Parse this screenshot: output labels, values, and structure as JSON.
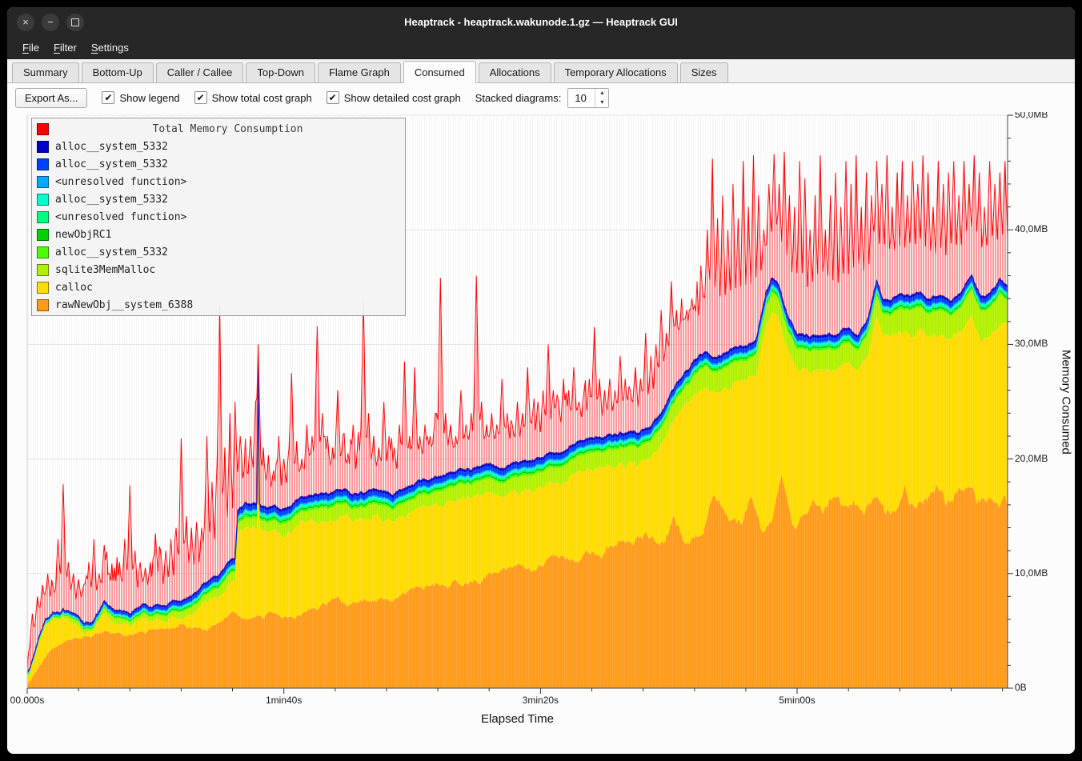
{
  "window": {
    "title": "Heaptrack - heaptrack.wakunode.1.gz — Heaptrack GUI"
  },
  "icons": {
    "close": "×",
    "minimize": "−",
    "check": "✔",
    "spin_up": "▴",
    "spin_down": "▾"
  },
  "menubar": {
    "items": [
      {
        "label": "File",
        "mnemonic": "F"
      },
      {
        "label": "Filter",
        "mnemonic": "F"
      },
      {
        "label": "Settings",
        "mnemonic": "S"
      }
    ]
  },
  "tabs": {
    "items": [
      "Summary",
      "Bottom-Up",
      "Caller / Callee",
      "Top-Down",
      "Flame Graph",
      "Consumed",
      "Allocations",
      "Temporary Allocations",
      "Sizes"
    ],
    "active": "Consumed"
  },
  "toolbar": {
    "export_button": "Export As...",
    "checkboxes": [
      {
        "label": "Show legend",
        "checked": true
      },
      {
        "label": "Show total cost graph",
        "checked": true
      },
      {
        "label": "Show detailed cost graph",
        "checked": true
      }
    ],
    "stacked_label": "Stacked diagrams:",
    "stacked_value": "10"
  },
  "chart_data": {
    "type": "area",
    "title": "Total Memory Consumption",
    "title_color": "#ff0000",
    "xlabel": "Elapsed Time",
    "ylabel": "Memory Consumed",
    "x_range": [
      0,
      382
    ],
    "y_range": [
      0,
      50
    ],
    "x_ticks": [
      {
        "label": "00.000s",
        "t": 0
      },
      {
        "label": "1min40s",
        "t": 100
      },
      {
        "label": "3min20s",
        "t": 200
      },
      {
        "label": "5min00s",
        "t": 300
      }
    ],
    "y_ticks": [
      {
        "label": "0B",
        "v": 0
      },
      {
        "label": "10,0MB",
        "v": 10
      },
      {
        "label": "20,0MB",
        "v": 20
      },
      {
        "label": "30,0MB",
        "v": 30
      },
      {
        "label": "40,0MB",
        "v": 40
      },
      {
        "label": "50,0MB",
        "v": 50
      }
    ],
    "legend": [
      {
        "name": "alloc__system_5332",
        "color": "#0000cd"
      },
      {
        "name": "alloc__system_5332",
        "color": "#0040ff"
      },
      {
        "name": "<unresolved function>",
        "color": "#00aaff"
      },
      {
        "name": "alloc__system_5332",
        "color": "#00ffcc"
      },
      {
        "name": "<unresolved function>",
        "color": "#00ff7f"
      },
      {
        "name": "newObjRC1",
        "color": "#00d400"
      },
      {
        "name": "alloc__system_5332",
        "color": "#4cff00"
      },
      {
        "name": "sqlite3MemMalloc",
        "color": "#b2f000"
      },
      {
        "name": "calloc",
        "color": "#ffdb00"
      },
      {
        "name": "rawNewObj__system_6388",
        "color": "#ff9a1a"
      }
    ],
    "envelopes": {
      "stack_top": {
        "t": [
          0,
          2,
          4,
          7,
          10,
          14,
          18,
          22,
          26,
          30,
          34,
          40,
          46,
          52,
          58,
          64,
          70,
          74,
          78,
          81,
          82,
          85,
          89.5,
          90,
          90.5,
          92,
          96,
          100,
          106,
          112,
          118,
          124,
          130,
          136,
          142,
          148,
          154,
          160,
          166,
          172,
          178,
          184,
          190,
          196,
          202,
          208,
          214,
          220,
          226,
          232,
          238,
          244,
          248,
          252,
          256,
          260,
          264,
          268,
          272,
          276,
          280,
          284,
          288,
          290,
          293,
          296,
          300,
          304,
          308,
          312,
          316,
          320,
          324,
          328,
          331,
          333,
          336,
          340,
          344,
          348,
          352,
          356,
          360,
          364,
          368,
          371,
          373,
          376,
          379,
          382
        ],
        "v": [
          1.5,
          2.5,
          4.0,
          6.0,
          6.8,
          7.0,
          6.2,
          5.6,
          6.1,
          7.3,
          6.5,
          6.6,
          7.2,
          7.0,
          7.6,
          8.1,
          9.3,
          9.6,
          10.6,
          10.9,
          15.3,
          16.0,
          16.1,
          28.8,
          16.2,
          16.0,
          15.6,
          15.5,
          16.5,
          16.8,
          16.6,
          17.0,
          17.1,
          17.4,
          17.2,
          17.6,
          18.0,
          18.5,
          18.9,
          19.2,
          19.5,
          19.2,
          19.7,
          20.0,
          20.3,
          21.0,
          21.6,
          22.0,
          22.2,
          22.4,
          22.3,
          23.2,
          24.6,
          26.2,
          27.6,
          28.6,
          29.3,
          28.9,
          29.3,
          29.7,
          29.6,
          30.1,
          34.6,
          35.8,
          35.2,
          32.6,
          30.8,
          31.0,
          30.7,
          31.2,
          30.9,
          31.4,
          31.0,
          32.6,
          35.6,
          34.2,
          34.0,
          34.5,
          34.0,
          34.4,
          33.9,
          34.5,
          34.0,
          34.6,
          36.2,
          34.6,
          34.2,
          35.0,
          35.8,
          35.2
        ]
      },
      "orange_top": {
        "t": [
          0,
          5,
          10,
          20,
          30,
          40,
          50,
          60,
          70,
          80,
          90,
          100,
          110,
          120,
          130,
          140,
          150,
          160,
          170,
          180,
          190,
          200,
          210,
          220,
          230,
          240,
          248,
          252,
          256,
          262,
          268,
          274,
          278,
          282,
          286,
          290,
          294,
          298,
          302,
          306,
          310,
          314,
          318,
          322,
          326,
          330,
          334,
          338,
          342,
          346,
          350,
          354,
          358,
          362,
          366,
          370,
          374,
          378,
          382
        ],
        "v": [
          0.3,
          2.0,
          3.5,
          4.5,
          5.0,
          4.6,
          5.0,
          5.5,
          5.2,
          6.0,
          6.2,
          6.5,
          7.0,
          7.4,
          7.5,
          8.0,
          8.5,
          9.0,
          9.5,
          10.0,
          10.4,
          11.0,
          11.2,
          12.0,
          12.5,
          13.2,
          12.8,
          15.5,
          13.2,
          13.8,
          16.8,
          13.8,
          14.2,
          17.0,
          14.2,
          14.6,
          19.5,
          14.8,
          15.2,
          16.8,
          15.0,
          16.5,
          15.2,
          16.8,
          15.4,
          17.5,
          15.6,
          16.0,
          17.8,
          15.8,
          16.2,
          17.2,
          15.6,
          16.4,
          17.6,
          15.8,
          16.6,
          17.2,
          16.0
        ]
      },
      "yellowgreen": {
        "base": 0.3,
        "grow": 1.6
      },
      "upper_bands": [
        {
          "name": "alloc__system_5332",
          "mb": 0.18
        },
        {
          "name": "newObjRC1",
          "mb": 0.15
        },
        {
          "name": "<unresolved function>",
          "mb": 0.15
        },
        {
          "name": "alloc__system_5332",
          "mb": 0.15
        },
        {
          "name": "<unresolved function>",
          "mb": 0.12
        },
        {
          "name": "alloc__system_5332",
          "mb": 0.35
        },
        {
          "name": "alloc__system_5332",
          "mb": 0.2
        }
      ],
      "red_boost": {
        "t": [
          0,
          244,
          250,
          263,
          268,
          382
        ],
        "v": [
          0,
          0.3,
          2.6,
          2.6,
          0.9,
          1.0
        ]
      }
    },
    "spikes": [
      [
        2,
        6.5
      ],
      [
        4,
        8
      ],
      [
        6,
        9
      ],
      [
        8,
        10
      ],
      [
        10,
        9
      ],
      [
        12,
        13
      ],
      [
        14,
        17.8
      ],
      [
        16,
        11
      ],
      [
        18,
        10
      ],
      [
        20,
        9.5
      ],
      [
        22,
        9
      ],
      [
        24,
        11
      ],
      [
        26,
        13
      ],
      [
        28,
        10
      ],
      [
        30,
        12.5
      ],
      [
        32,
        10
      ],
      [
        34,
        10.5
      ],
      [
        36,
        11
      ],
      [
        38,
        13
      ],
      [
        40,
        17.7
      ],
      [
        42,
        12
      ],
      [
        44,
        11
      ],
      [
        46,
        10.5
      ],
      [
        48,
        11
      ],
      [
        50,
        13.5
      ],
      [
        52,
        12
      ],
      [
        54,
        12
      ],
      [
        56,
        13
      ],
      [
        58,
        14
      ],
      [
        60,
        21.8
      ],
      [
        62,
        15
      ],
      [
        64,
        14
      ],
      [
        66,
        14.5
      ],
      [
        68,
        14
      ],
      [
        70,
        22
      ],
      [
        72,
        18
      ],
      [
        74,
        20
      ],
      [
        75,
        33.4
      ],
      [
        77,
        21
      ],
      [
        79,
        24
      ],
      [
        81,
        25
      ],
      [
        83,
        22
      ],
      [
        85,
        20
      ],
      [
        87,
        22
      ],
      [
        89,
        25
      ],
      [
        90,
        30
      ],
      [
        92,
        21
      ],
      [
        94,
        20
      ],
      [
        96,
        19
      ],
      [
        98,
        22
      ],
      [
        100,
        20
      ],
      [
        102,
        21
      ],
      [
        103,
        27.5
      ],
      [
        105,
        21
      ],
      [
        107,
        20
      ],
      [
        109,
        23
      ],
      [
        111,
        22
      ],
      [
        113,
        31.6
      ],
      [
        115,
        24
      ],
      [
        117,
        22
      ],
      [
        119,
        21
      ],
      [
        121,
        26
      ],
      [
        123,
        22
      ],
      [
        125,
        20.5
      ],
      [
        127,
        23
      ],
      [
        129,
        22
      ],
      [
        131,
        33.8
      ],
      [
        133,
        24
      ],
      [
        135,
        22
      ],
      [
        137,
        21
      ],
      [
        139,
        25
      ],
      [
        141,
        22
      ],
      [
        143,
        21
      ],
      [
        145,
        23
      ],
      [
        147,
        28.5
      ],
      [
        149,
        22
      ],
      [
        151,
        28
      ],
      [
        153,
        22
      ],
      [
        155,
        23
      ],
      [
        157,
        22
      ],
      [
        159,
        24
      ],
      [
        161,
        35.8
      ],
      [
        163,
        24
      ],
      [
        165,
        23
      ],
      [
        167,
        22
      ],
      [
        169,
        26
      ],
      [
        171,
        23
      ],
      [
        173,
        24
      ],
      [
        175,
        36
      ],
      [
        177,
        25
      ],
      [
        179,
        23
      ],
      [
        181,
        24
      ],
      [
        183,
        23
      ],
      [
        185,
        27
      ],
      [
        187,
        24
      ],
      [
        189,
        23
      ],
      [
        191,
        25
      ],
      [
        193,
        24
      ],
      [
        195,
        28
      ],
      [
        197,
        24
      ],
      [
        199,
        25
      ],
      [
        201,
        26
      ],
      [
        203,
        30
      ],
      [
        205,
        26
      ],
      [
        207,
        25
      ],
      [
        209,
        27
      ],
      [
        211,
        26
      ],
      [
        213,
        28
      ],
      [
        215,
        25
      ],
      [
        217,
        26
      ],
      [
        219,
        27
      ],
      [
        221,
        31.5
      ],
      [
        223,
        27
      ],
      [
        225,
        26
      ],
      [
        227,
        27
      ],
      [
        229,
        26
      ],
      [
        231,
        29
      ],
      [
        233,
        27
      ],
      [
        235,
        26
      ],
      [
        237,
        28
      ],
      [
        239,
        27
      ],
      [
        241,
        31
      ],
      [
        243,
        29
      ],
      [
        245,
        30
      ],
      [
        247,
        33
      ],
      [
        249,
        31
      ],
      [
        251,
        35.5
      ],
      [
        253,
        33
      ],
      [
        255,
        34
      ],
      [
        257,
        33
      ],
      [
        259,
        34
      ],
      [
        261,
        32
      ],
      [
        263,
        35
      ],
      [
        265,
        40
      ],
      [
        267,
        46.2
      ],
      [
        269,
        41
      ],
      [
        271,
        43
      ],
      [
        273,
        40
      ],
      [
        275,
        44
      ],
      [
        277,
        41
      ],
      [
        279,
        46
      ],
      [
        281,
        42
      ],
      [
        283,
        46.5
      ],
      [
        285,
        43
      ],
      [
        287,
        40
      ],
      [
        289,
        44
      ],
      [
        291,
        46.6
      ],
      [
        293,
        44
      ],
      [
        295,
        46.8
      ],
      [
        297,
        43
      ],
      [
        299,
        42
      ],
      [
        301,
        46
      ],
      [
        303,
        44.5
      ],
      [
        305,
        40
      ],
      [
        307,
        43
      ],
      [
        309,
        46.5
      ],
      [
        311,
        40
      ],
      [
        313,
        43
      ],
      [
        315,
        45
      ],
      [
        317,
        42
      ],
      [
        319,
        46
      ],
      [
        321,
        44
      ],
      [
        323,
        46.5
      ],
      [
        325,
        42
      ],
      [
        327,
        45
      ],
      [
        329,
        43
      ],
      [
        331,
        46
      ],
      [
        333,
        44
      ],
      [
        335,
        46.5
      ],
      [
        337,
        42
      ],
      [
        339,
        45
      ],
      [
        341,
        46
      ],
      [
        343,
        43
      ],
      [
        345,
        46
      ],
      [
        347,
        44
      ],
      [
        349,
        46.5
      ],
      [
        351,
        45
      ],
      [
        353,
        42
      ],
      [
        355,
        46
      ],
      [
        357,
        44
      ],
      [
        359,
        45
      ],
      [
        361,
        46
      ],
      [
        363,
        43
      ],
      [
        365,
        46
      ],
      [
        367,
        44
      ],
      [
        369,
        46.5
      ],
      [
        371,
        45
      ],
      [
        373,
        42
      ],
      [
        375,
        46
      ],
      [
        377,
        44
      ],
      [
        379,
        45
      ],
      [
        381,
        46
      ]
    ]
  }
}
